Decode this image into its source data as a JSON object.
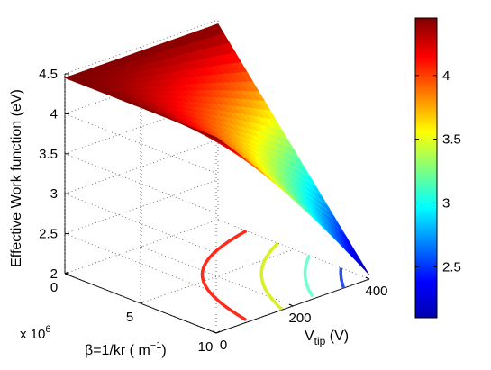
{
  "chart_data": {
    "type": "surface",
    "zlabel": "Effective Work function (eV)",
    "xlabel_main": "V",
    "xlabel_sub": "tip",
    "xlabel_unit": " (V)",
    "ylabel_main": "β=1/kr ( m",
    "ylabel_sup": "−1",
    "ylabel_close": ")",
    "y_multiplier_base": "x 10",
    "y_multiplier_exp": "6",
    "zlim": [
      2,
      4.5
    ],
    "xlim": [
      0,
      400
    ],
    "ylim": [
      0,
      10
    ],
    "z_ticks": [
      "2",
      "2.5",
      "3",
      "3.5",
      "4",
      "4.5"
    ],
    "x_ticks": [
      "0",
      "200",
      "400"
    ],
    "y_ticks": [
      "0",
      "5",
      "10"
    ],
    "colorbar_ticks": [
      "2.5",
      "3",
      "3.5",
      "4"
    ],
    "colorbar_range": [
      2.1,
      4.45
    ],
    "surface_corners": {
      "V0_beta0": 4.45,
      "V0_beta10": 4.45,
      "V400_beta0": 4.45,
      "V400_beta10": 2.05
    },
    "contours": [
      {
        "level": 4.0,
        "color": "#ff2a1a"
      },
      {
        "level": 3.5,
        "color": "#d8f020"
      },
      {
        "level": 3.0,
        "color": "#70ffd0"
      },
      {
        "level": 2.5,
        "color": "#2c50e8"
      }
    ],
    "colors": {
      "colormap": [
        "#00008f",
        "#0000ff",
        "#00ffff",
        "#ffff00",
        "#ff0000",
        "#800000"
      ]
    }
  }
}
